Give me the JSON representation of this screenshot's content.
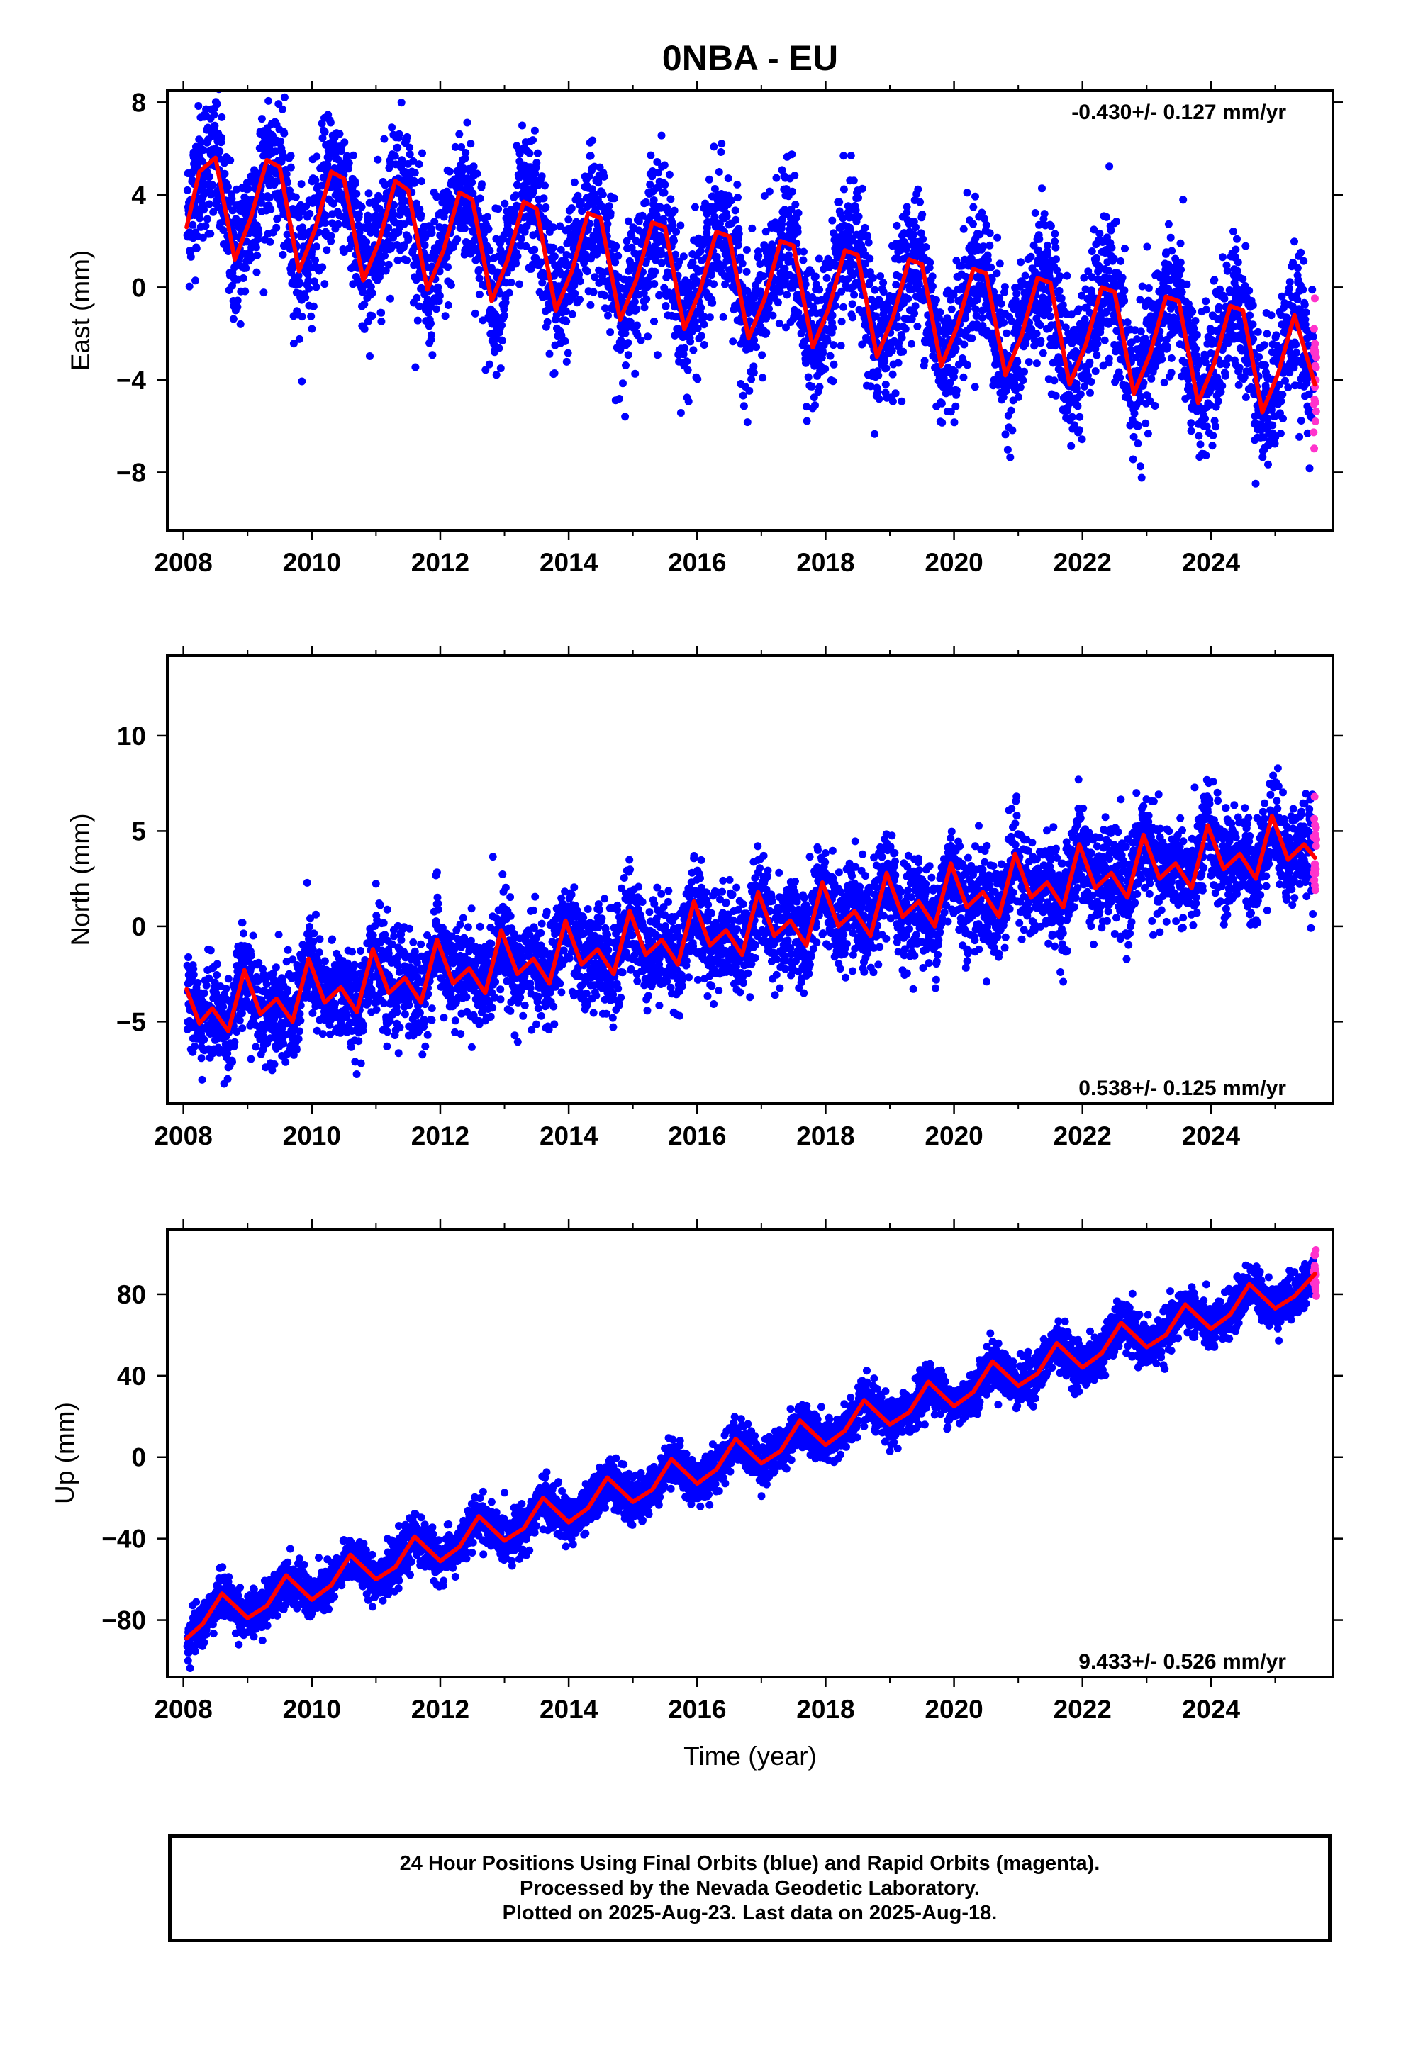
{
  "title": "0NBA - EU",
  "xlabel": "Time (year)",
  "caption": [
    "24 Hour Positions Using Final Orbits (blue) and Rapid Orbits (magenta).",
    "Processed by the Nevada Geodetic Laboratory.",
    "Plotted on 2025-Aug-23. Last data on 2025-Aug-18."
  ],
  "colors": {
    "final": "#0000ff",
    "rapid": "#ff33cc",
    "model": "#ff0000"
  },
  "chart_data": [
    {
      "type": "scatter",
      "component": "East",
      "ylabel": "East (mm)",
      "rate_label": "-0.430+/- 0.127 mm/yr",
      "xlim": [
        2007.75,
        2025.9
      ],
      "ylim": [
        -10.5,
        8.5
      ],
      "yticks": [
        -8,
        -4,
        0,
        4,
        8
      ],
      "xticks": [
        2008,
        2010,
        2012,
        2014,
        2016,
        2018,
        2020,
        2022,
        2024
      ],
      "model_points": [
        [
          2008.05,
          2.6
        ],
        [
          2008.25,
          5.0
        ],
        [
          2008.5,
          5.6
        ],
        [
          2008.8,
          1.2
        ],
        [
          2009.05,
          3.0
        ],
        [
          2009.3,
          5.5
        ],
        [
          2009.5,
          5.2
        ],
        [
          2009.8,
          0.7
        ],
        [
          2010.05,
          2.5
        ],
        [
          2010.3,
          5.0
        ],
        [
          2010.5,
          4.7
        ],
        [
          2010.8,
          0.3
        ],
        [
          2011.05,
          2.0
        ],
        [
          2011.3,
          4.6
        ],
        [
          2011.5,
          4.2
        ],
        [
          2011.8,
          -0.1
        ],
        [
          2012.05,
          1.6
        ],
        [
          2012.3,
          4.1
        ],
        [
          2012.5,
          3.8
        ],
        [
          2012.8,
          -0.6
        ],
        [
          2013.05,
          1.2
        ],
        [
          2013.3,
          3.7
        ],
        [
          2013.5,
          3.4
        ],
        [
          2013.8,
          -1.0
        ],
        [
          2014.05,
          0.7
        ],
        [
          2014.3,
          3.2
        ],
        [
          2014.5,
          3.0
        ],
        [
          2014.8,
          -1.4
        ],
        [
          2015.05,
          0.3
        ],
        [
          2015.3,
          2.8
        ],
        [
          2015.5,
          2.6
        ],
        [
          2015.8,
          -1.8
        ],
        [
          2016.05,
          -0.1
        ],
        [
          2016.3,
          2.4
        ],
        [
          2016.5,
          2.2
        ],
        [
          2016.8,
          -2.2
        ],
        [
          2017.05,
          -0.5
        ],
        [
          2017.3,
          2.0
        ],
        [
          2017.5,
          1.8
        ],
        [
          2017.8,
          -2.6
        ],
        [
          2018.05,
          -0.9
        ],
        [
          2018.3,
          1.6
        ],
        [
          2018.5,
          1.4
        ],
        [
          2018.8,
          -3.0
        ],
        [
          2019.05,
          -1.3
        ],
        [
          2019.3,
          1.2
        ],
        [
          2019.5,
          1.0
        ],
        [
          2019.8,
          -3.4
        ],
        [
          2020.05,
          -1.7
        ],
        [
          2020.3,
          0.8
        ],
        [
          2020.5,
          0.6
        ],
        [
          2020.8,
          -3.8
        ],
        [
          2021.05,
          -2.1
        ],
        [
          2021.3,
          0.4
        ],
        [
          2021.5,
          0.2
        ],
        [
          2021.8,
          -4.2
        ],
        [
          2022.05,
          -2.5
        ],
        [
          2022.3,
          0.0
        ],
        [
          2022.5,
          -0.2
        ],
        [
          2022.8,
          -4.6
        ],
        [
          2023.05,
          -2.9
        ],
        [
          2023.3,
          -0.4
        ],
        [
          2023.5,
          -0.6
        ],
        [
          2023.8,
          -5.0
        ],
        [
          2024.05,
          -3.3
        ],
        [
          2024.3,
          -0.8
        ],
        [
          2024.5,
          -1.0
        ],
        [
          2024.8,
          -5.4
        ],
        [
          2025.05,
          -3.7
        ],
        [
          2025.3,
          -1.2
        ],
        [
          2025.62,
          -4.2
        ]
      ]
    },
    {
      "type": "scatter",
      "component": "North",
      "ylabel": "North (mm)",
      "rate_label": "0.538+/- 0.125 mm/yr",
      "xlim": [
        2007.75,
        2025.9
      ],
      "ylim": [
        -9.3,
        14.2
      ],
      "yticks": [
        -5,
        0,
        5,
        10
      ],
      "xticks": [
        2008,
        2010,
        2012,
        2014,
        2016,
        2018,
        2020,
        2022,
        2024
      ],
      "model_points": [
        [
          2008.05,
          -3.3
        ],
        [
          2008.25,
          -5.1
        ],
        [
          2008.45,
          -4.3
        ],
        [
          2008.7,
          -5.5
        ],
        [
          2008.95,
          -2.3
        ],
        [
          2009.2,
          -4.6
        ],
        [
          2009.45,
          -3.8
        ],
        [
          2009.7,
          -5.0
        ],
        [
          2009.95,
          -1.7
        ],
        [
          2010.2,
          -4.0
        ],
        [
          2010.45,
          -3.2
        ],
        [
          2010.7,
          -4.5
        ],
        [
          2010.95,
          -1.2
        ],
        [
          2011.2,
          -3.5
        ],
        [
          2011.45,
          -2.7
        ],
        [
          2011.7,
          -4.0
        ],
        [
          2011.95,
          -0.7
        ],
        [
          2012.2,
          -3.0
        ],
        [
          2012.45,
          -2.2
        ],
        [
          2012.7,
          -3.5
        ],
        [
          2012.95,
          -0.2
        ],
        [
          2013.2,
          -2.5
        ],
        [
          2013.45,
          -1.7
        ],
        [
          2013.7,
          -3.0
        ],
        [
          2013.95,
          0.3
        ],
        [
          2014.2,
          -2.0
        ],
        [
          2014.45,
          -1.2
        ],
        [
          2014.7,
          -2.5
        ],
        [
          2014.95,
          0.8
        ],
        [
          2015.2,
          -1.5
        ],
        [
          2015.45,
          -0.7
        ],
        [
          2015.7,
          -2.0
        ],
        [
          2015.95,
          1.3
        ],
        [
          2016.2,
          -1.0
        ],
        [
          2016.45,
          -0.2
        ],
        [
          2016.7,
          -1.5
        ],
        [
          2016.95,
          1.8
        ],
        [
          2017.2,
          -0.5
        ],
        [
          2017.45,
          0.3
        ],
        [
          2017.7,
          -1.0
        ],
        [
          2017.95,
          2.3
        ],
        [
          2018.2,
          0.0
        ],
        [
          2018.45,
          0.8
        ],
        [
          2018.7,
          -0.5
        ],
        [
          2018.95,
          2.8
        ],
        [
          2019.2,
          0.5
        ],
        [
          2019.45,
          1.3
        ],
        [
          2019.7,
          0.0
        ],
        [
          2019.95,
          3.3
        ],
        [
          2020.2,
          1.0
        ],
        [
          2020.45,
          1.8
        ],
        [
          2020.7,
          0.5
        ],
        [
          2020.95,
          3.8
        ],
        [
          2021.2,
          1.5
        ],
        [
          2021.45,
          2.3
        ],
        [
          2021.7,
          1.0
        ],
        [
          2021.95,
          4.3
        ],
        [
          2022.2,
          2.0
        ],
        [
          2022.45,
          2.8
        ],
        [
          2022.7,
          1.5
        ],
        [
          2022.95,
          4.8
        ],
        [
          2023.2,
          2.5
        ],
        [
          2023.45,
          3.3
        ],
        [
          2023.7,
          2.0
        ],
        [
          2023.95,
          5.3
        ],
        [
          2024.2,
          3.0
        ],
        [
          2024.45,
          3.8
        ],
        [
          2024.7,
          2.5
        ],
        [
          2024.95,
          5.8
        ],
        [
          2025.2,
          3.5
        ],
        [
          2025.45,
          4.3
        ],
        [
          2025.62,
          3.6
        ]
      ]
    },
    {
      "type": "scatter",
      "component": "Up",
      "ylabel": "Up (mm)",
      "rate_label": "9.433+/- 0.526 mm/yr",
      "xlim": [
        2007.75,
        2025.9
      ],
      "ylim": [
        -108,
        112
      ],
      "yticks": [
        -80,
        -40,
        0,
        40,
        80
      ],
      "xticks": [
        2008,
        2010,
        2012,
        2014,
        2016,
        2018,
        2020,
        2022,
        2024
      ],
      "model_points": [
        [
          2008.05,
          -89
        ],
        [
          2008.3,
          -82
        ],
        [
          2008.6,
          -67
        ],
        [
          2009.0,
          -79
        ],
        [
          2009.3,
          -73
        ],
        [
          2009.6,
          -58
        ],
        [
          2010.0,
          -70
        ],
        [
          2010.3,
          -63
        ],
        [
          2010.6,
          -48
        ],
        [
          2011.0,
          -60
        ],
        [
          2011.3,
          -54
        ],
        [
          2011.6,
          -39
        ],
        [
          2012.0,
          -51
        ],
        [
          2012.3,
          -44
        ],
        [
          2012.6,
          -29
        ],
        [
          2013.0,
          -41
        ],
        [
          2013.3,
          -35
        ],
        [
          2013.6,
          -20
        ],
        [
          2014.0,
          -32
        ],
        [
          2014.3,
          -25
        ],
        [
          2014.6,
          -10
        ],
        [
          2015.0,
          -22
        ],
        [
          2015.3,
          -16
        ],
        [
          2015.6,
          -1
        ],
        [
          2016.0,
          -13
        ],
        [
          2016.3,
          -6
        ],
        [
          2016.6,
          9
        ],
        [
          2017.0,
          -3
        ],
        [
          2017.3,
          3
        ],
        [
          2017.6,
          18
        ],
        [
          2018.0,
          6
        ],
        [
          2018.3,
          13
        ],
        [
          2018.6,
          28
        ],
        [
          2019.0,
          16
        ],
        [
          2019.3,
          22
        ],
        [
          2019.6,
          37
        ],
        [
          2020.0,
          25
        ],
        [
          2020.3,
          32
        ],
        [
          2020.6,
          47
        ],
        [
          2021.0,
          35
        ],
        [
          2021.3,
          41
        ],
        [
          2021.6,
          56
        ],
        [
          2022.0,
          44
        ],
        [
          2022.3,
          51
        ],
        [
          2022.6,
          66
        ],
        [
          2023.0,
          54
        ],
        [
          2023.3,
          60
        ],
        [
          2023.6,
          75
        ],
        [
          2024.0,
          63
        ],
        [
          2024.3,
          70
        ],
        [
          2024.6,
          85
        ],
        [
          2025.0,
          73
        ],
        [
          2025.3,
          79
        ],
        [
          2025.62,
          90
        ]
      ]
    }
  ]
}
